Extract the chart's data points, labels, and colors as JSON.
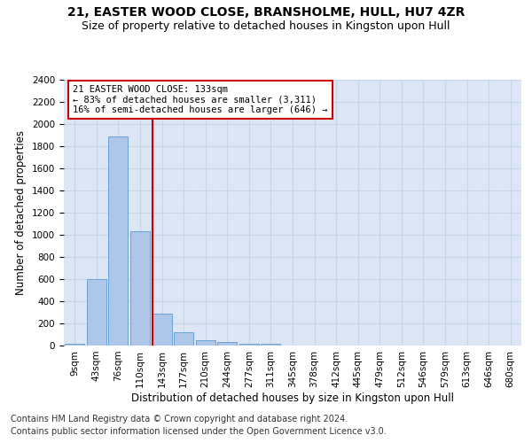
{
  "title1": "21, EASTER WOOD CLOSE, BRANSHOLME, HULL, HU7 4ZR",
  "title2": "Size of property relative to detached houses in Kingston upon Hull",
  "xlabel": "Distribution of detached houses by size in Kingston upon Hull",
  "ylabel": "Number of detached properties",
  "footnote1": "Contains HM Land Registry data © Crown copyright and database right 2024.",
  "footnote2": "Contains public sector information licensed under the Open Government Licence v3.0.",
  "categories": [
    "9sqm",
    "43sqm",
    "76sqm",
    "110sqm",
    "143sqm",
    "177sqm",
    "210sqm",
    "244sqm",
    "277sqm",
    "311sqm",
    "345sqm",
    "378sqm",
    "412sqm",
    "445sqm",
    "479sqm",
    "512sqm",
    "546sqm",
    "579sqm",
    "613sqm",
    "646sqm",
    "680sqm"
  ],
  "values": [
    20,
    600,
    1890,
    1030,
    290,
    120,
    48,
    35,
    20,
    15,
    0,
    0,
    0,
    0,
    0,
    0,
    0,
    0,
    0,
    0,
    0
  ],
  "bar_color": "#aec6e8",
  "bar_edge_color": "#6aa3d5",
  "vline_color": "#cc0000",
  "vline_x_index": 3.55,
  "annotation_title": "21 EASTER WOOD CLOSE: 133sqm",
  "annotation_line1": "← 83% of detached houses are smaller (3,311)",
  "annotation_line2": "16% of semi-detached houses are larger (646) →",
  "annotation_box_color": "#ffffff",
  "annotation_box_edge": "#cc0000",
  "ylim": [
    0,
    2400
  ],
  "yticks": [
    0,
    200,
    400,
    600,
    800,
    1000,
    1200,
    1400,
    1600,
    1800,
    2000,
    2200,
    2400
  ],
  "grid_color": "#c8d4e8",
  "bg_color": "#dce6f5",
  "title1_fontsize": 10,
  "title2_fontsize": 9,
  "xlabel_fontsize": 8.5,
  "ylabel_fontsize": 8.5,
  "tick_fontsize": 7.5,
  "footnote_fontsize": 7,
  "annotation_fontsize": 7.5
}
